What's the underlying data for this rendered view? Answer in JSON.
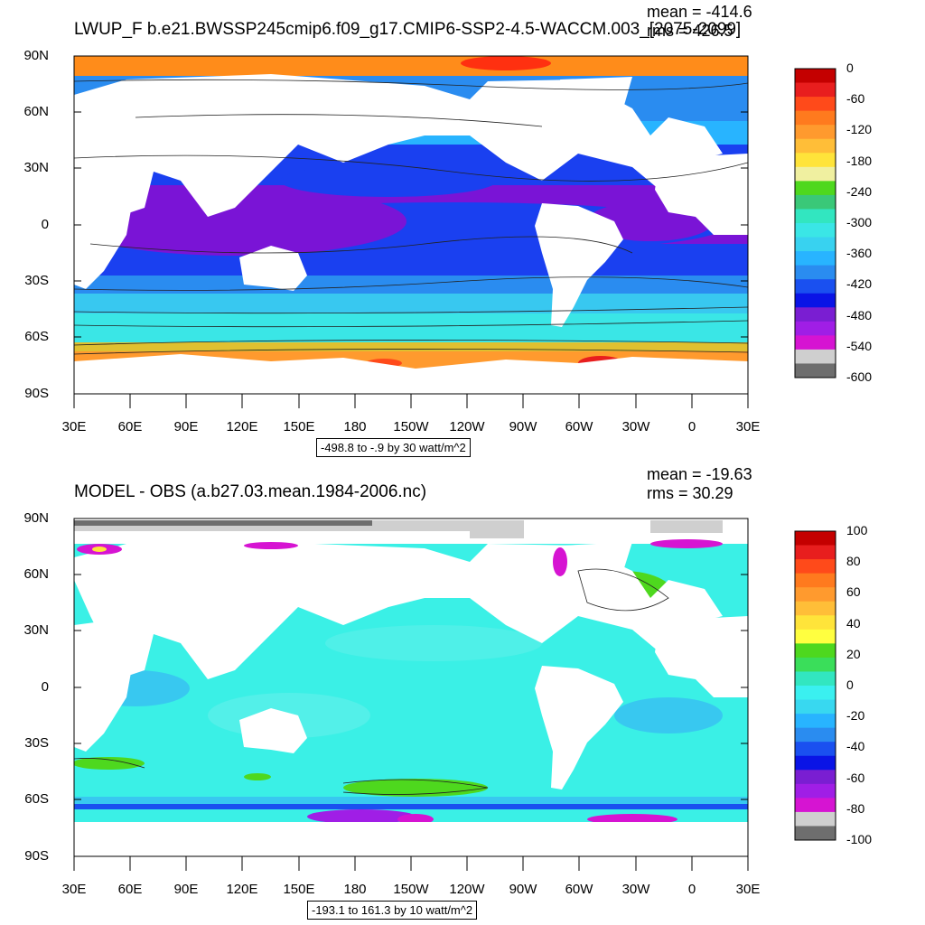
{
  "top": {
    "title": "LWUP_F b.e21.BWSSP245cmip6.f09_g17.CMIP6-SSP2-4.5-WACCM.003_[2075-2099]",
    "mean_text": "mean = -414.6",
    "rms_text": "rms = 426.5",
    "info": "-498.8 to -.9 by 30 watt/m^2",
    "colorbar_labels": [
      "0",
      "-60",
      "-120",
      "-180",
      "-240",
      "-300",
      "-360",
      "-420",
      "-480",
      "-540",
      "-600"
    ],
    "colorbar_colors": [
      "#c40000",
      "#e81e1e",
      "#ff4a1a",
      "#ff7a1e",
      "#ff9a2e",
      "#ffbe38",
      "#ffe43a",
      "#f0f0a0",
      "#4ed81e",
      "#3ac878",
      "#32e6c0",
      "#3ae6e6",
      "#38d2f0",
      "#28b4ff",
      "#2a8cf0",
      "#1a50f0",
      "#0a14e6",
      "#7a1ed2",
      "#a01ee6",
      "#d614d2",
      "#cfcfcf",
      "#6e6e6e"
    ]
  },
  "bottom": {
    "title": "MODEL - OBS (a.b27.03.mean.1984-2006.nc)",
    "mean_text": "mean = -19.63",
    "rms_text": "rms = 30.29",
    "info": "-193.1 to 161.3 by 10 watt/m^2",
    "colorbar_labels": [
      "100",
      "80",
      "60",
      "40",
      "20",
      "0",
      "-20",
      "-40",
      "-60",
      "-80",
      "-100"
    ],
    "colorbar_colors": [
      "#c40000",
      "#e81e1e",
      "#ff4a1a",
      "#ff7a1e",
      "#ff9a2e",
      "#ffbe38",
      "#ffe43a",
      "#ffff40",
      "#4ed81e",
      "#3ade5a",
      "#32e6c0",
      "#3af0f0",
      "#38d8f0",
      "#28b4ff",
      "#2a8cf0",
      "#1a50f0",
      "#0a14e6",
      "#7a1ed2",
      "#a01ee6",
      "#d614d2",
      "#cfcfcf",
      "#6e6e6e"
    ]
  },
  "axes": {
    "lat_labels": [
      "90N",
      "60N",
      "30N",
      "0",
      "30S",
      "60S",
      "90S"
    ],
    "lon_labels": [
      "30E",
      "60E",
      "90E",
      "120E",
      "150E",
      "180",
      "150W",
      "120W",
      "90W",
      "60W",
      "30W",
      "0",
      "30E"
    ]
  }
}
